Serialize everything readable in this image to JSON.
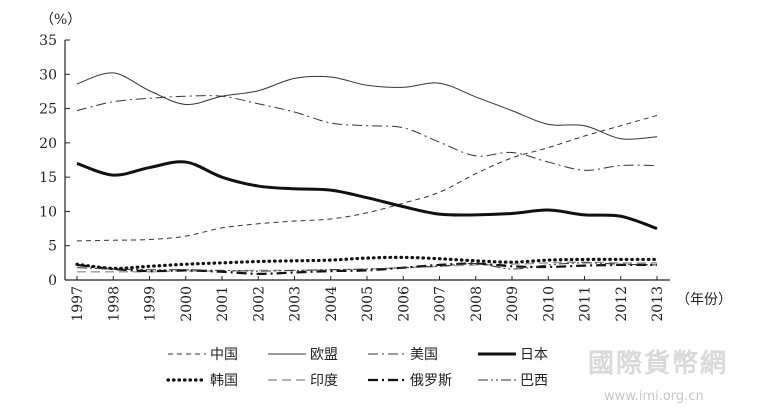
{
  "chart_data": {
    "type": "line",
    "ylabel": "（%）",
    "xlabel": "（年份）",
    "ylim": [
      0,
      35
    ],
    "yticks": [
      0,
      5,
      10,
      15,
      20,
      25,
      30,
      35
    ],
    "x": [
      "1997",
      "1998",
      "1999",
      "2000",
      "2001",
      "2002",
      "2003",
      "2004",
      "2005",
      "2006",
      "2007",
      "2008",
      "2009",
      "2010",
      "2011",
      "2012",
      "2013"
    ],
    "grid": false,
    "legend_position": "bottom",
    "series": [
      {
        "name": "中国",
        "style": "dashed",
        "color": "#333333",
        "values": [
          5.7,
          5.8,
          5.9,
          6.4,
          7.6,
          8.2,
          8.6,
          8.9,
          9.8,
          11.2,
          12.8,
          15.5,
          17.8,
          19.3,
          21.0,
          22.5,
          24.0
        ]
      },
      {
        "name": "欧盟",
        "style": "solid-thin",
        "color": "#333333",
        "values": [
          28.6,
          30.2,
          27.6,
          25.6,
          26.8,
          27.6,
          29.4,
          29.6,
          28.4,
          28.1,
          28.7,
          26.7,
          24.7,
          22.7,
          22.5,
          20.6,
          20.9
        ]
      },
      {
        "name": "美国",
        "style": "dash-dot",
        "color": "#333333",
        "values": [
          24.7,
          26.0,
          26.5,
          26.8,
          26.8,
          25.7,
          24.5,
          22.9,
          22.5,
          22.2,
          20.1,
          18.1,
          18.6,
          17.2,
          16.0,
          16.7,
          16.7
        ]
      },
      {
        "name": "日本",
        "style": "solid-thick",
        "color": "#111111",
        "values": [
          17.0,
          15.3,
          16.4,
          17.2,
          15.0,
          13.7,
          13.3,
          13.1,
          12.0,
          10.7,
          9.6,
          9.5,
          9.7,
          10.2,
          9.5,
          9.3,
          7.5
        ]
      },
      {
        "name": "韩国",
        "style": "dotted",
        "color": "#111111",
        "values": [
          2.3,
          1.7,
          2.0,
          2.3,
          2.5,
          2.7,
          2.8,
          2.9,
          3.2,
          3.3,
          3.1,
          2.8,
          2.6,
          2.9,
          3.0,
          3.0,
          3.0
        ]
      },
      {
        "name": "印度",
        "style": "long-dash",
        "color": "#999999",
        "values": [
          1.2,
          1.2,
          1.2,
          1.3,
          1.3,
          1.4,
          1.4,
          1.5,
          1.6,
          1.8,
          2.0,
          2.2,
          2.3,
          2.5,
          2.6,
          2.5,
          2.5
        ]
      },
      {
        "name": "俄罗斯",
        "style": "dash-dot-thick",
        "color": "#111111",
        "values": [
          2.2,
          1.6,
          1.3,
          1.4,
          1.2,
          0.9,
          1.1,
          1.3,
          1.4,
          1.8,
          2.2,
          2.4,
          2.0,
          1.9,
          2.1,
          2.2,
          2.2
        ]
      },
      {
        "name": "巴西",
        "style": "dash-dot-dot",
        "color": "#333333",
        "values": [
          1.8,
          1.6,
          1.5,
          1.5,
          1.4,
          1.3,
          1.4,
          1.5,
          1.6,
          1.8,
          2.0,
          2.4,
          1.6,
          2.2,
          2.5,
          2.3,
          2.2
        ]
      }
    ]
  },
  "watermark": {
    "title": "國際貨幣網",
    "url": "www.imi.org.cn"
  }
}
